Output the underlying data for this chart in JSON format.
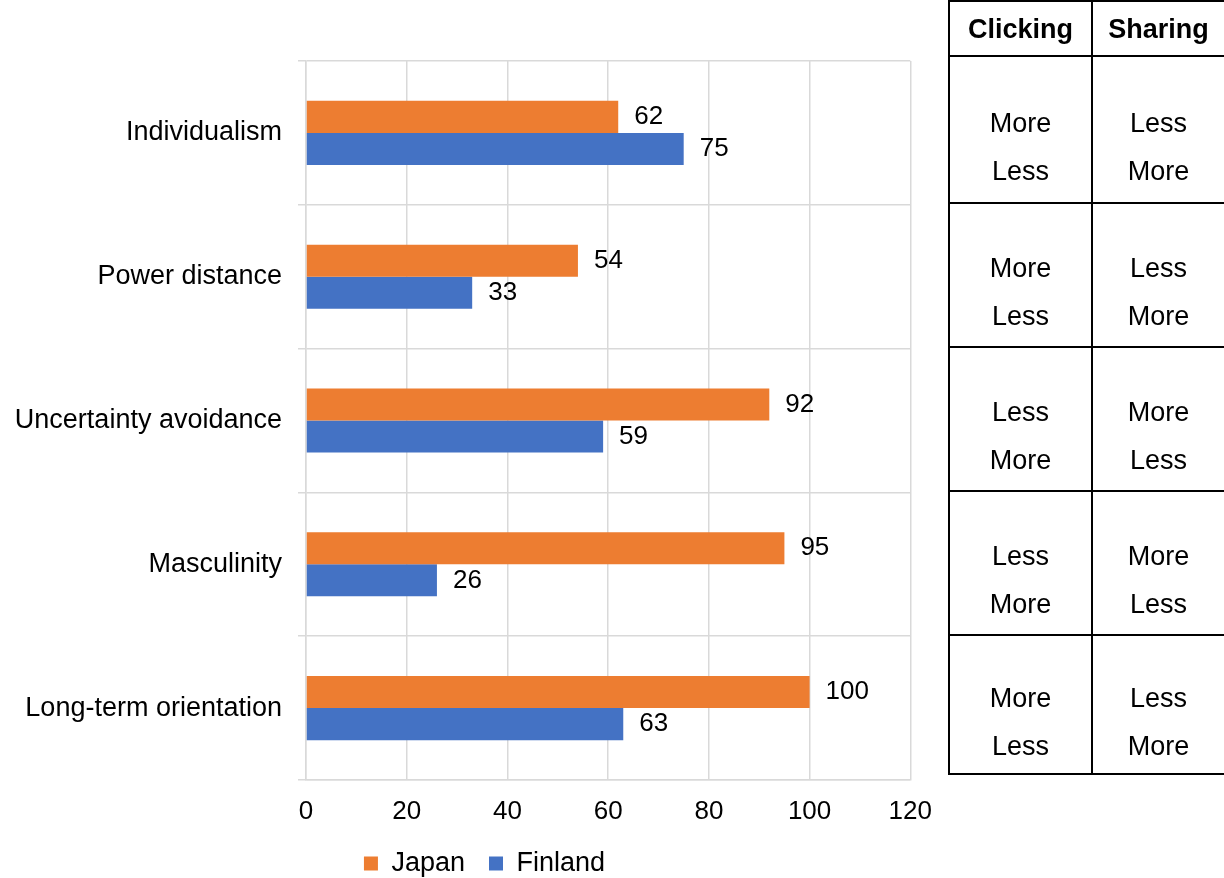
{
  "chart_data": [
    {
      "type": "bar",
      "orientation": "horizontal",
      "categories": [
        "Individualism",
        "Power distance",
        "Uncertainty avoidance",
        "Masculinity",
        "Long-term orientation"
      ],
      "series": [
        {
          "name": "Japan",
          "color": "#ed7d31",
          "values": [
            62,
            54,
            92,
            95,
            100
          ]
        },
        {
          "name": "Finland",
          "color": "#4472c4",
          "values": [
            75,
            33,
            59,
            26,
            63
          ]
        }
      ],
      "xlim": [
        0,
        120
      ],
      "xticks": [
        0,
        20,
        40,
        60,
        80,
        100,
        120
      ],
      "grid": true,
      "legend": "bottom",
      "data_labels": true
    },
    {
      "type": "other",
      "categories": [
        "Clicking",
        "Sharing"
      ],
      "cell_labels": [
        [
          [
            "More",
            "Less"
          ],
          [
            "Less",
            "More"
          ]
        ],
        [
          [
            "More",
            "Less"
          ],
          [
            "Less",
            "More"
          ]
        ],
        [
          [
            "Less",
            "More"
          ],
          [
            "More",
            "Less"
          ]
        ],
        [
          [
            "Less",
            "More"
          ],
          [
            "More",
            "Less"
          ]
        ],
        [
          [
            "More",
            "Less"
          ],
          [
            "Less",
            "More"
          ]
        ]
      ]
    }
  ]
}
